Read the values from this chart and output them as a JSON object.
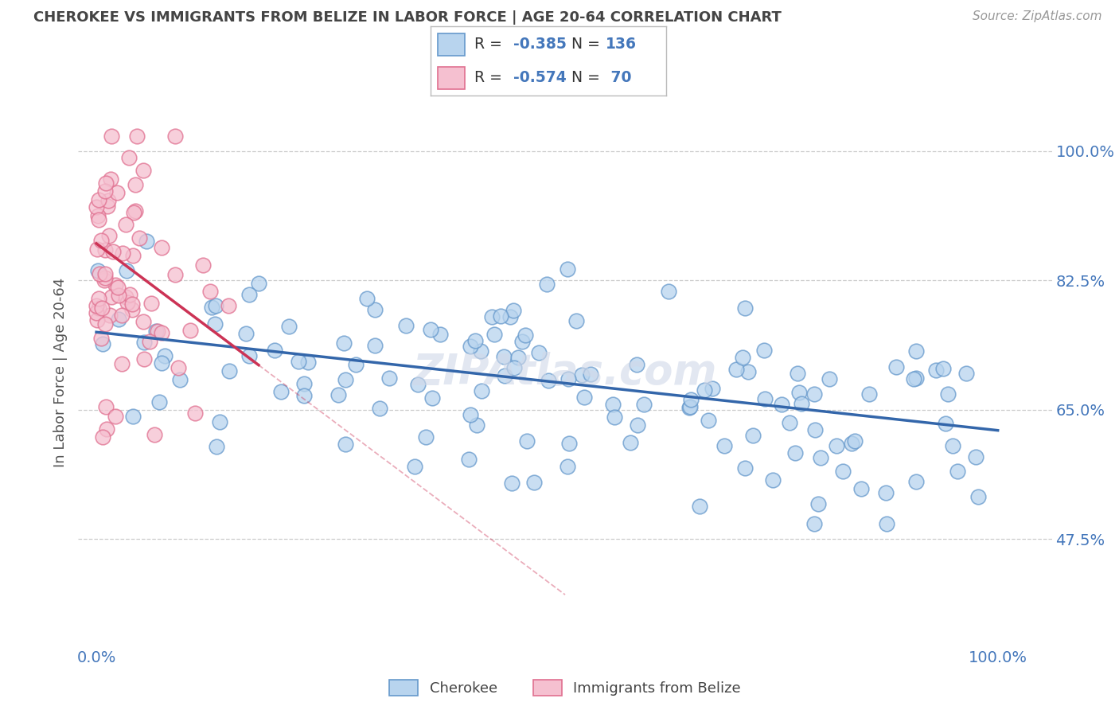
{
  "title": "CHEROKEE VS IMMIGRANTS FROM BELIZE IN LABOR FORCE | AGE 20-64 CORRELATION CHART",
  "source": "Source: ZipAtlas.com",
  "ylabel": "In Labor Force | Age 20-64",
  "cherokee_R": -0.385,
  "cherokee_N": 136,
  "belize_R": -0.574,
  "belize_N": 70,
  "cherokee_fill": "#b8d4ee",
  "cherokee_edge": "#6699cc",
  "belize_fill": "#f5c0d0",
  "belize_edge": "#e07090",
  "cherokee_line": "#3366aa",
  "belize_line": "#cc3355",
  "bg_color": "#ffffff",
  "grid_color": "#cccccc",
  "title_color": "#444444",
  "axis_color": "#4477bb",
  "legend_label_color": "#4477bb",
  "ytick_vals": [
    0.475,
    0.65,
    0.825,
    1.0
  ],
  "ytick_labels": [
    "47.5%",
    "65.0%",
    "82.5%",
    "100.0%"
  ],
  "ylim": [
    0.33,
    1.07
  ],
  "xlim": [
    -0.02,
    1.06
  ],
  "cherokee_trend_x0": 0.0,
  "cherokee_trend_y0": 0.755,
  "cherokee_trend_x1": 1.0,
  "cherokee_trend_y1": 0.622,
  "belize_trend_x0": 0.0,
  "belize_trend_y0": 0.875,
  "belize_trend_x1": 0.35,
  "belize_trend_y1": 0.555
}
